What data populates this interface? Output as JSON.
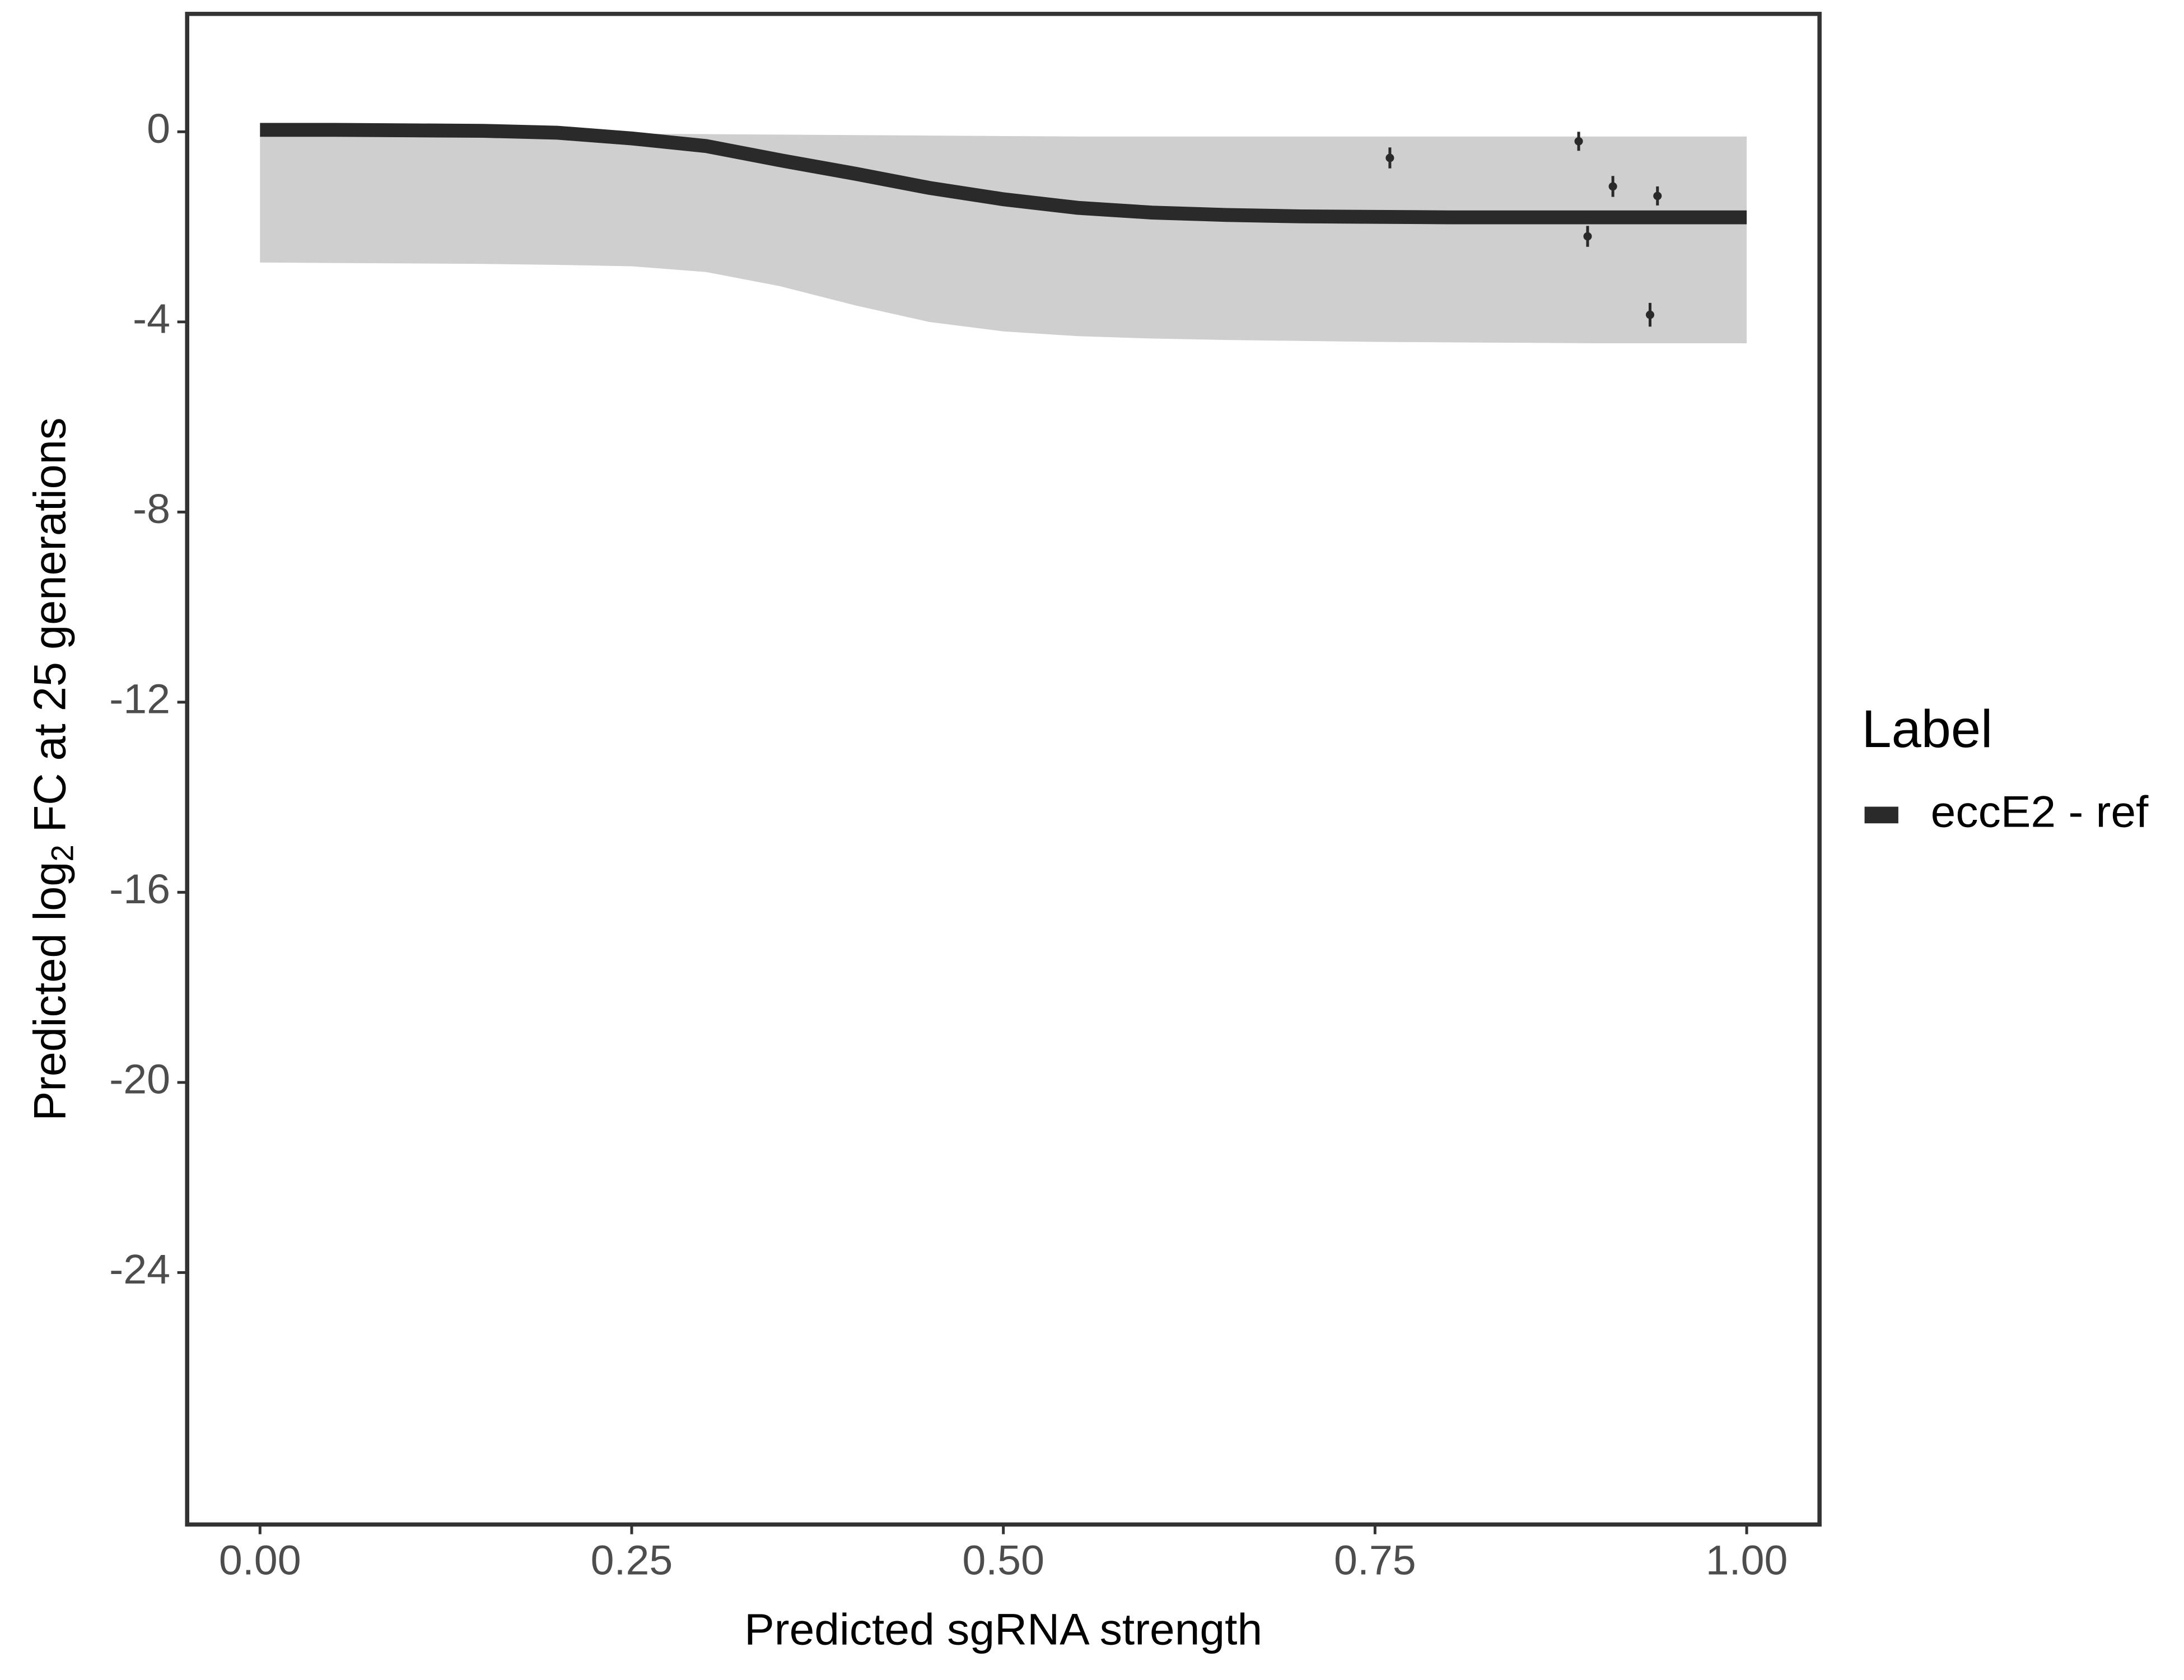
{
  "chart_data": {
    "type": "line",
    "x_label": "Predicted sgRNA strength",
    "y_label": {
      "before": "Predicted  log",
      "sub": "2",
      "after": " FC at 25 generations"
    },
    "legend_title": "Label",
    "x": [
      0,
      0.05,
      0.1,
      0.15,
      0.2,
      0.25,
      0.3,
      0.35,
      0.4,
      0.45,
      0.5,
      0.55,
      0.6,
      0.65,
      0.7,
      0.75,
      0.8,
      0.85,
      0.9,
      0.95,
      1
    ],
    "series": [
      {
        "name": "eccE2 - ref",
        "color": "#2a2a2a",
        "values": [
          0.04,
          0.04,
          0.03,
          0.02,
          -0.02,
          -0.14,
          -0.3,
          -0.6,
          -0.88,
          -1.18,
          -1.42,
          -1.6,
          -1.7,
          -1.75,
          -1.78,
          -1.79,
          -1.8,
          -1.8,
          -1.8,
          -1.8,
          -1.8
        ]
      }
    ],
    "band": {
      "color": "#a8a8a8",
      "upper": [
        -0.02,
        -0.02,
        -0.02,
        -0.03,
        -0.03,
        -0.04,
        -0.05,
        -0.06,
        -0.07,
        -0.08,
        -0.09,
        -0.1,
        -0.1,
        -0.1,
        -0.1,
        -0.1,
        -0.1,
        -0.1,
        -0.1,
        -0.1,
        -0.1
      ],
      "lower": [
        -2.75,
        -2.76,
        -2.77,
        -2.78,
        -2.8,
        -2.83,
        -2.95,
        -3.25,
        -3.65,
        -4.0,
        -4.2,
        -4.3,
        -4.35,
        -4.38,
        -4.4,
        -4.42,
        -4.43,
        -4.44,
        -4.45,
        -4.45,
        -4.45
      ]
    },
    "points": {
      "color": "#2a2a2a",
      "x": [
        0.76,
        0.887,
        0.91,
        0.94,
        0.893,
        0.935
      ],
      "y": [
        -0.55,
        -0.2,
        -1.15,
        -1.35,
        -2.2,
        -3.85
      ],
      "err": [
        0.22,
        0.2,
        0.22,
        0.2,
        0.22,
        0.25
      ]
    },
    "xlim": [
      -0.049,
      1.049
    ],
    "ylim": [
      -29.3,
      2.48
    ],
    "xticks": [
      {
        "value": 0,
        "label": "0.00"
      },
      0.25,
      {
        "value": 0.5,
        "label": "0.50"
      },
      0.75,
      {
        "value": 1,
        "label": "1.00"
      }
    ],
    "yticks": [
      0,
      -4,
      -8,
      -12,
      -16,
      -20,
      -24
    ],
    "grid": false
  }
}
